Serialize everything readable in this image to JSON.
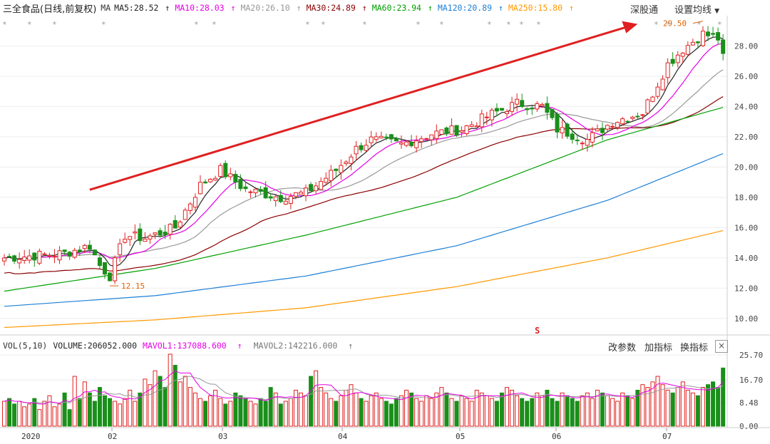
{
  "header": {
    "stock_title": "三全食品(日线,前复权)",
    "indicator": "MA",
    "ma": [
      {
        "label": "MA5:28.52",
        "arrow": "↑",
        "color": "#222222"
      },
      {
        "label": "MA10:28.03",
        "arrow": "↑",
        "color": "#e600e6"
      },
      {
        "label": "MA20:26.10",
        "arrow": "↑",
        "color": "#999999"
      },
      {
        "label": "MA30:24.89",
        "arrow": "↑",
        "color": "#8b0000"
      },
      {
        "label": "MA60:23.94",
        "arrow": "↑",
        "color": "#00a000"
      },
      {
        "label": "MA120:20.89",
        "arrow": "↑",
        "color": "#1e7fd6"
      },
      {
        "label": "MA250:15.80",
        "arrow": "↑",
        "color": "#ff9900"
      }
    ],
    "right_buttons": [
      "深股通",
      "设置均线"
    ],
    "dropdown_icon": "chevron-down-icon"
  },
  "volume_header": {
    "label": "VOL(5,10)",
    "volume": "VOLUME:206052.000",
    "mavol1": "MAVOL1:137088.600",
    "mavol1_arrow": "↑",
    "mavol2": "MAVOL2:142216.000",
    "mavol2_arrow": "↑",
    "buttons": [
      "改参数",
      "加指标",
      "换指标"
    ],
    "close_label": "×"
  },
  "colors": {
    "up": "#e02020",
    "down": "#1a8f1a",
    "ma5": "#222222",
    "ma10": "#e600e6",
    "ma20": "#999999",
    "ma30": "#8b0000",
    "ma60": "#00a000",
    "ma120": "#1e7fd6",
    "ma250": "#ff9900",
    "arrow": "#e02020",
    "annotation": "#e06000"
  },
  "chart_data": {
    "type": "candlestick",
    "title": "三全食品(日线,前复权)",
    "price_axis": {
      "ticks": [
        10.0,
        12.0,
        14.0,
        16.0,
        18.0,
        20.0,
        22.0,
        24.0,
        26.0,
        28.0
      ],
      "range": [
        9.0,
        30.0
      ]
    },
    "volume_axis": {
      "ticks": [
        0.0,
        8.48,
        16.7,
        25.7
      ],
      "range": [
        0,
        26.5
      ]
    },
    "x_labels": [
      "2020",
      "02",
      "03",
      "04",
      "05",
      "06",
      "07"
    ],
    "annotations": {
      "high": "29.50",
      "low": "12.15",
      "dividend_mark": "S"
    },
    "trend_arrow": {
      "from": {
        "day": 17,
        "price": 18.5
      },
      "to": {
        "day": 126,
        "price": 29.45
      }
    },
    "key_points": [
      {
        "day": 0,
        "price": 14.0
      },
      {
        "day": 12,
        "price": 14.3
      },
      {
        "day": 17,
        "price": 14.8
      },
      {
        "day": 19,
        "price": 13.5
      },
      {
        "day": 21,
        "price": 12.8
      },
      {
        "day": 24,
        "price": 15.5
      },
      {
        "day": 28,
        "price": 15.3
      },
      {
        "day": 34,
        "price": 16.0
      },
      {
        "day": 39,
        "price": 18.8
      },
      {
        "day": 43,
        "price": 19.8
      },
      {
        "day": 48,
        "price": 18.5
      },
      {
        "day": 55,
        "price": 18.0
      },
      {
        "day": 60,
        "price": 18.3
      },
      {
        "day": 66,
        "price": 19.8
      },
      {
        "day": 70,
        "price": 21.2
      },
      {
        "day": 73,
        "price": 21.8
      },
      {
        "day": 79,
        "price": 21.5
      },
      {
        "day": 85,
        "price": 22.2
      },
      {
        "day": 91,
        "price": 22.5
      },
      {
        "day": 97,
        "price": 23.5
      },
      {
        "day": 102,
        "price": 24.2
      },
      {
        "day": 107,
        "price": 24.0
      },
      {
        "day": 110,
        "price": 22.5
      },
      {
        "day": 116,
        "price": 21.8
      },
      {
        "day": 121,
        "price": 23.0
      },
      {
        "day": 127,
        "price": 23.6
      },
      {
        "day": 132,
        "price": 26.8
      },
      {
        "day": 135,
        "price": 27.8
      },
      {
        "day": 139,
        "price": 28.8
      },
      {
        "day": 142,
        "price": 28.5
      },
      {
        "day": 143,
        "price": 27.2
      }
    ],
    "ma_series": {
      "MA60": [
        [
          0,
          11.8
        ],
        [
          30,
          13.3
        ],
        [
          60,
          15.5
        ],
        [
          90,
          18.0
        ],
        [
          120,
          21.8
        ],
        [
          143,
          23.94
        ]
      ],
      "MA120": [
        [
          0,
          10.8
        ],
        [
          30,
          11.5
        ],
        [
          60,
          12.8
        ],
        [
          90,
          14.8
        ],
        [
          120,
          17.8
        ],
        [
          143,
          20.89
        ]
      ],
      "MA250": [
        [
          0,
          9.4
        ],
        [
          30,
          9.9
        ],
        [
          60,
          10.7
        ],
        [
          90,
          12.1
        ],
        [
          120,
          14.0
        ],
        [
          143,
          15.8
        ]
      ]
    },
    "volume_levels": [
      9,
      10,
      8,
      9,
      7,
      8,
      10,
      6,
      9,
      11,
      7,
      8,
      12,
      6,
      18,
      10,
      16,
      12,
      9,
      14,
      11,
      10,
      9,
      8,
      10,
      13,
      9,
      12,
      17,
      15,
      20,
      18,
      14,
      26,
      22,
      16,
      18,
      14,
      12,
      10,
      9,
      11,
      13,
      10,
      8,
      9,
      12,
      11,
      10,
      9,
      8,
      10,
      9,
      14,
      12,
      8,
      9,
      10,
      13,
      12,
      11,
      18,
      20,
      14,
      12,
      10,
      9,
      11,
      13,
      15,
      12,
      10,
      9,
      11,
      12,
      10,
      9,
      8,
      10,
      11,
      13,
      12,
      10,
      9,
      11,
      10,
      12,
      14,
      12,
      10,
      9,
      11,
      10,
      9,
      13,
      12,
      11,
      10,
      9,
      12,
      14,
      13,
      11,
      10,
      9,
      10,
      12,
      11,
      13,
      10,
      9,
      12,
      11,
      10,
      9,
      11,
      12,
      10,
      13,
      12,
      11,
      10,
      9,
      12,
      11,
      10,
      13,
      15,
      14,
      16,
      18,
      15,
      13,
      12,
      14,
      16,
      13,
      12,
      11,
      14,
      15,
      16,
      14,
      21
    ]
  }
}
